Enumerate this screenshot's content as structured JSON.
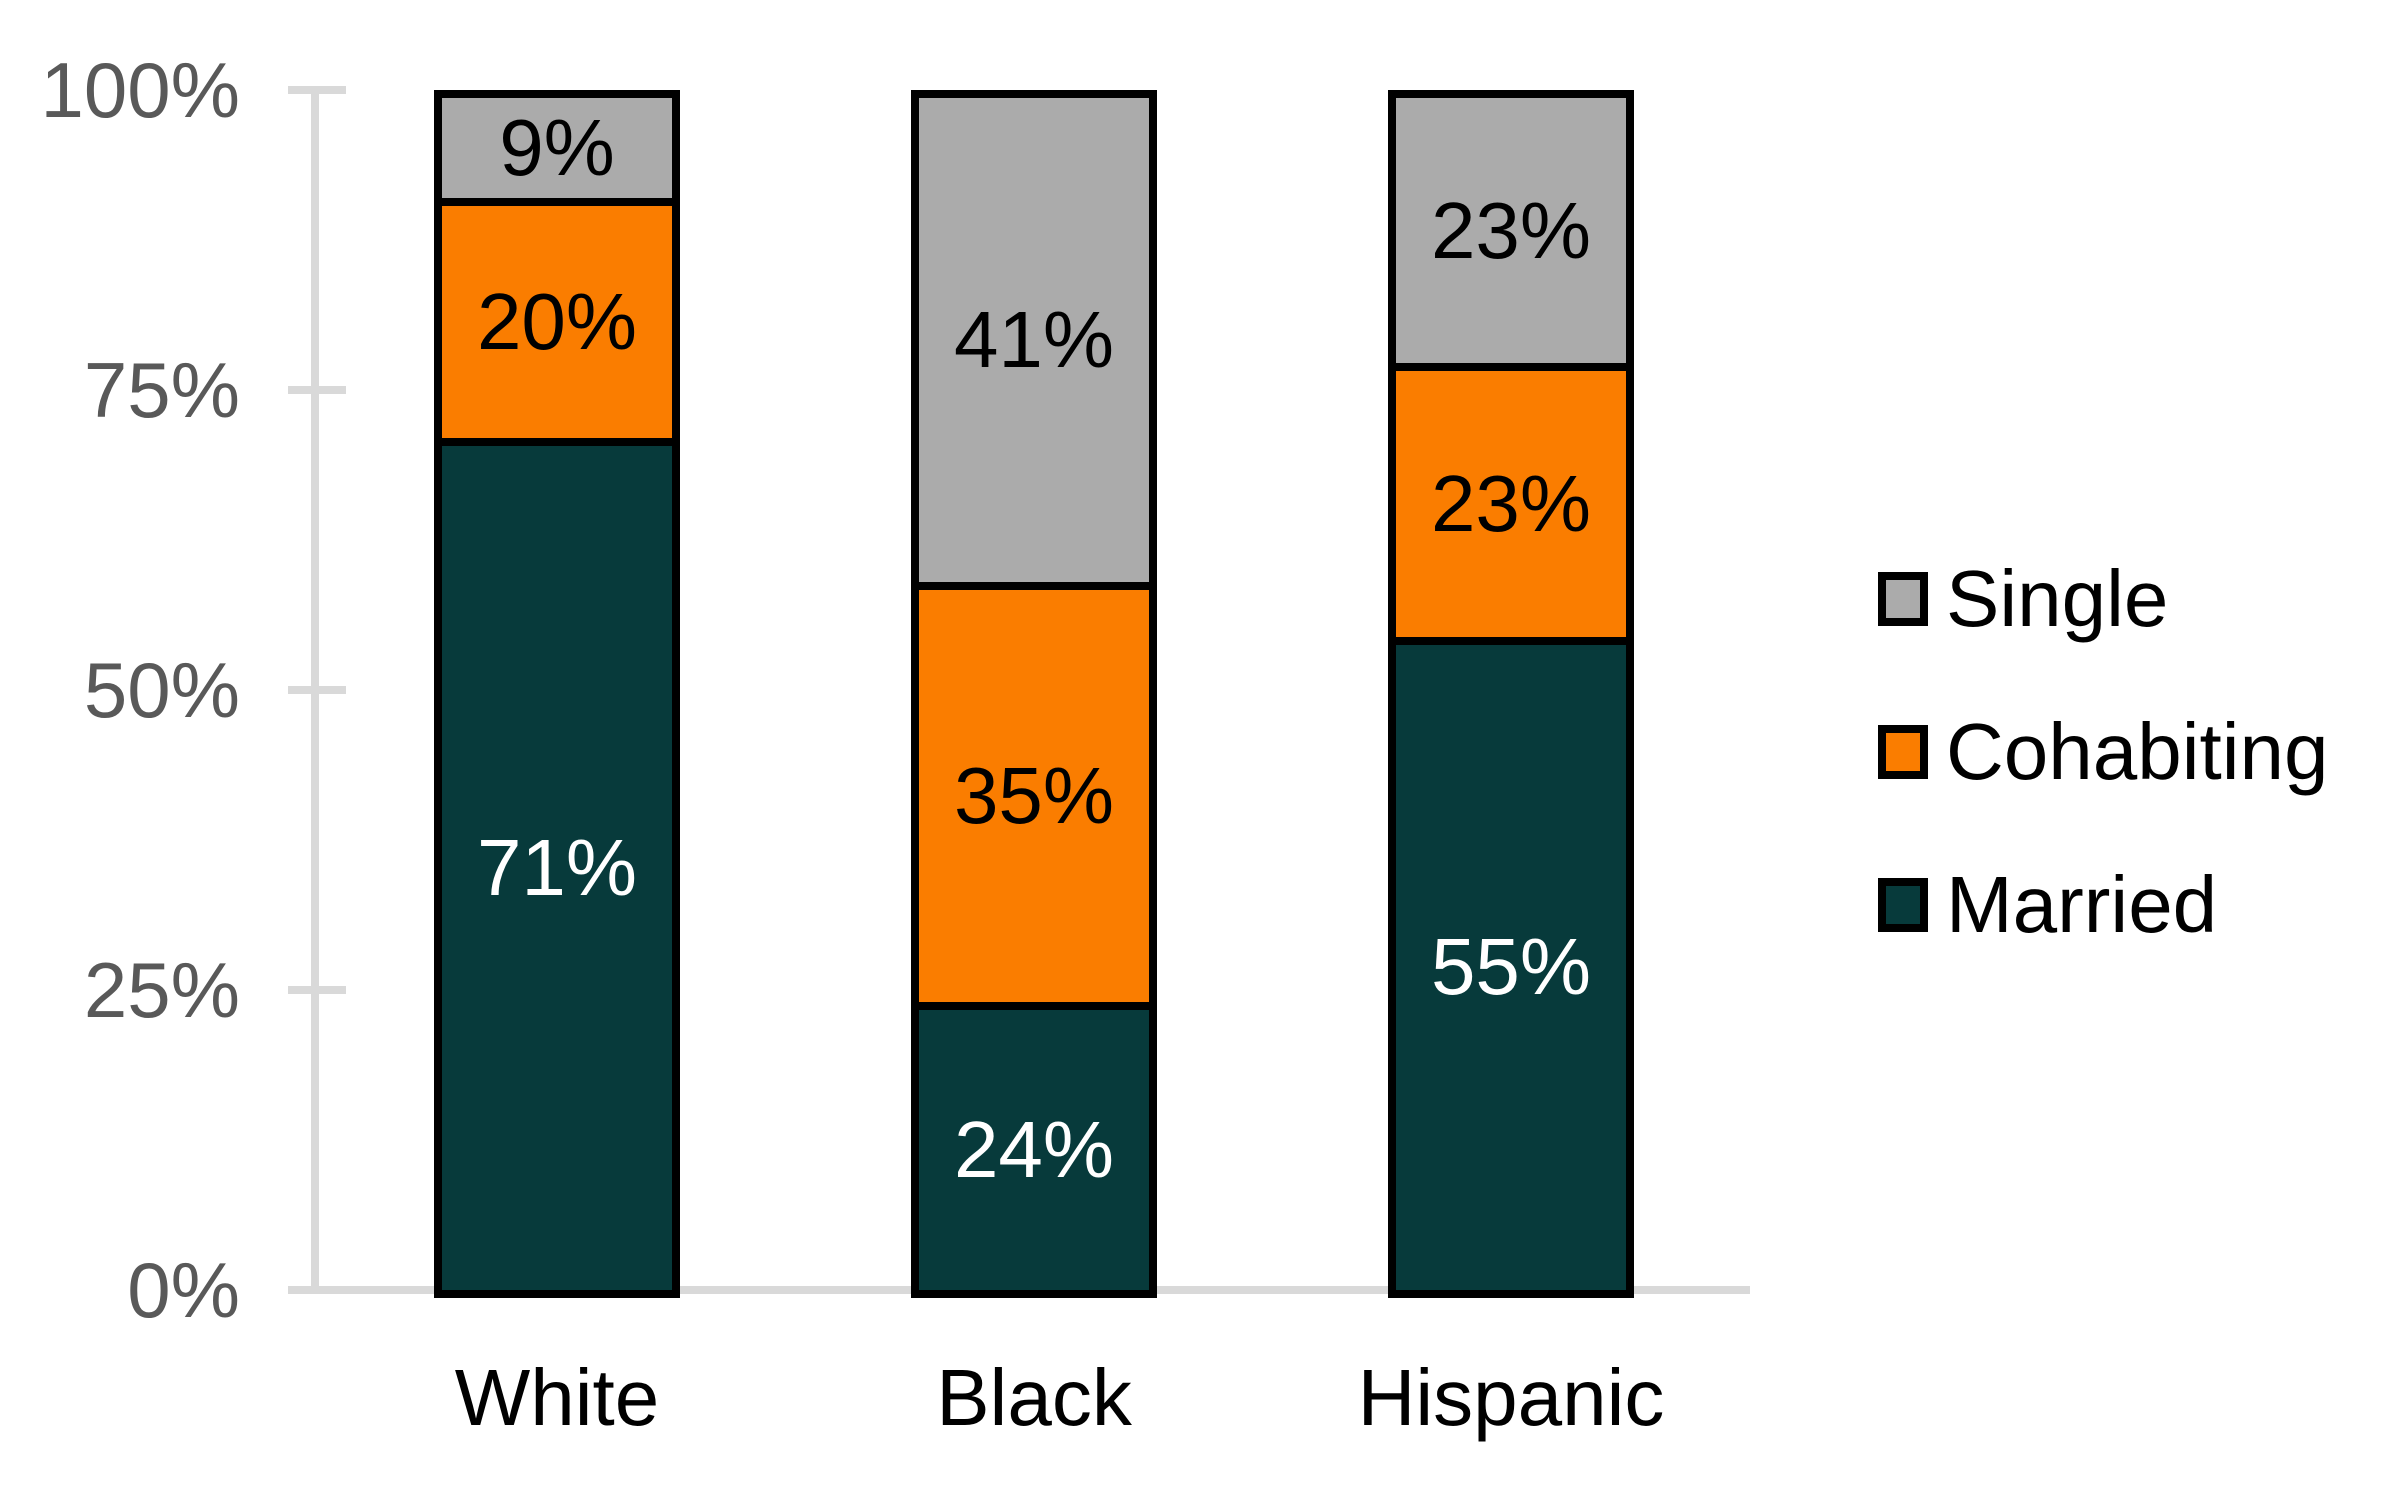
{
  "chart_data": {
    "type": "bar",
    "subtype": "stacked-100-percent-column",
    "title": "",
    "categories": [
      "White",
      "Black",
      "Hispanic"
    ],
    "series": [
      {
        "name": "Married",
        "color": "#073A3B",
        "label_color": "#FFFFFF",
        "values": [
          71,
          24,
          55
        ]
      },
      {
        "name": "Cohabiting",
        "color": "#FA7D00",
        "label_color": "#000000",
        "values": [
          20,
          35,
          23
        ]
      },
      {
        "name": "Single",
        "color": "#ABABAB",
        "label_color": "#000000",
        "values": [
          9,
          41,
          23
        ]
      }
    ],
    "value_suffix": "%",
    "ytick_labels": [
      "0%",
      "25%",
      "50%",
      "75%",
      "100%"
    ],
    "ytick_values": [
      0,
      25,
      50,
      75,
      100
    ],
    "ylim": [
      0,
      100
    ],
    "grid": false,
    "legend_entries": [
      "Single",
      "Cohabiting",
      "Married"
    ],
    "legend_position": "right",
    "axis_color": "#D9D9D9",
    "tick_label_color": "#595959",
    "category_label_color": "#000000",
    "bar_border_color": "#000000",
    "background_color": "#FFFFFF"
  }
}
